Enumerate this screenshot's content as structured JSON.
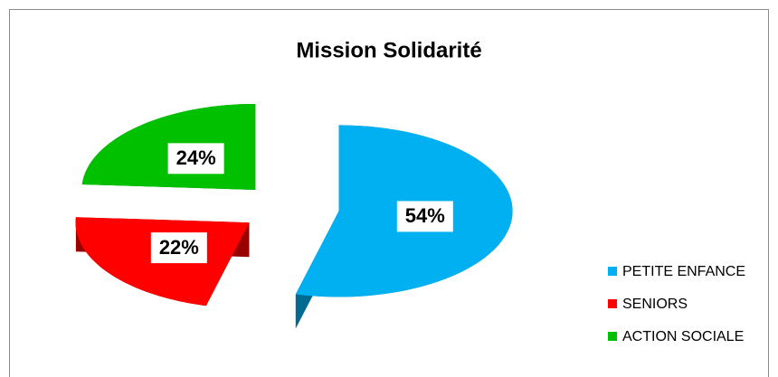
{
  "chart_data": {
    "type": "pie3d",
    "title": "Mission Solidarité",
    "categories": [
      "PETITE ENFANCE",
      "SENIORS",
      "ACTION SOCIALE"
    ],
    "values": [
      54,
      22,
      24
    ],
    "value_labels": [
      "54%",
      "22%",
      "24%"
    ],
    "colors": [
      "#00b0f0",
      "#ff0000",
      "#00c000"
    ],
    "legend": "right"
  }
}
